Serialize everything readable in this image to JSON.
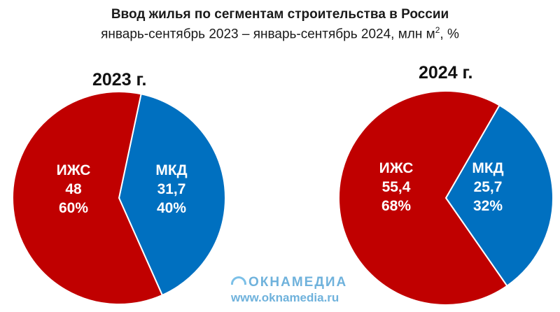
{
  "title": "Ввод жилья по сегментам строительства в России",
  "subtitle": "январь-сентябрь 2023 – январь-сентябрь 2024, млн м",
  "subtitle_sup": "2",
  "subtitle_tail": ", %",
  "colors": {
    "izhs": "#c00000",
    "mkd": "#0070c0"
  },
  "watermark": {
    "logo_text": "ОКНАМЕДИА",
    "url": "www.oknamedia.ru"
  },
  "chart_data": [
    {
      "type": "pie",
      "title": "2023 г.",
      "slices": [
        {
          "label": "ИЖС",
          "value": "48",
          "percent": "60%",
          "share": 60,
          "color": "#c00000"
        },
        {
          "label": "МКД",
          "value": "31,7",
          "percent": "40%",
          "share": 40,
          "color": "#0070c0"
        }
      ]
    },
    {
      "type": "pie",
      "title": "2024 г.",
      "slices": [
        {
          "label": "ИЖС",
          "value": "55,4",
          "percent": "68%",
          "share": 68,
          "color": "#c00000"
        },
        {
          "label": "МКД",
          "value": "25,7",
          "percent": "32%",
          "share": 32,
          "color": "#0070c0"
        }
      ]
    }
  ]
}
